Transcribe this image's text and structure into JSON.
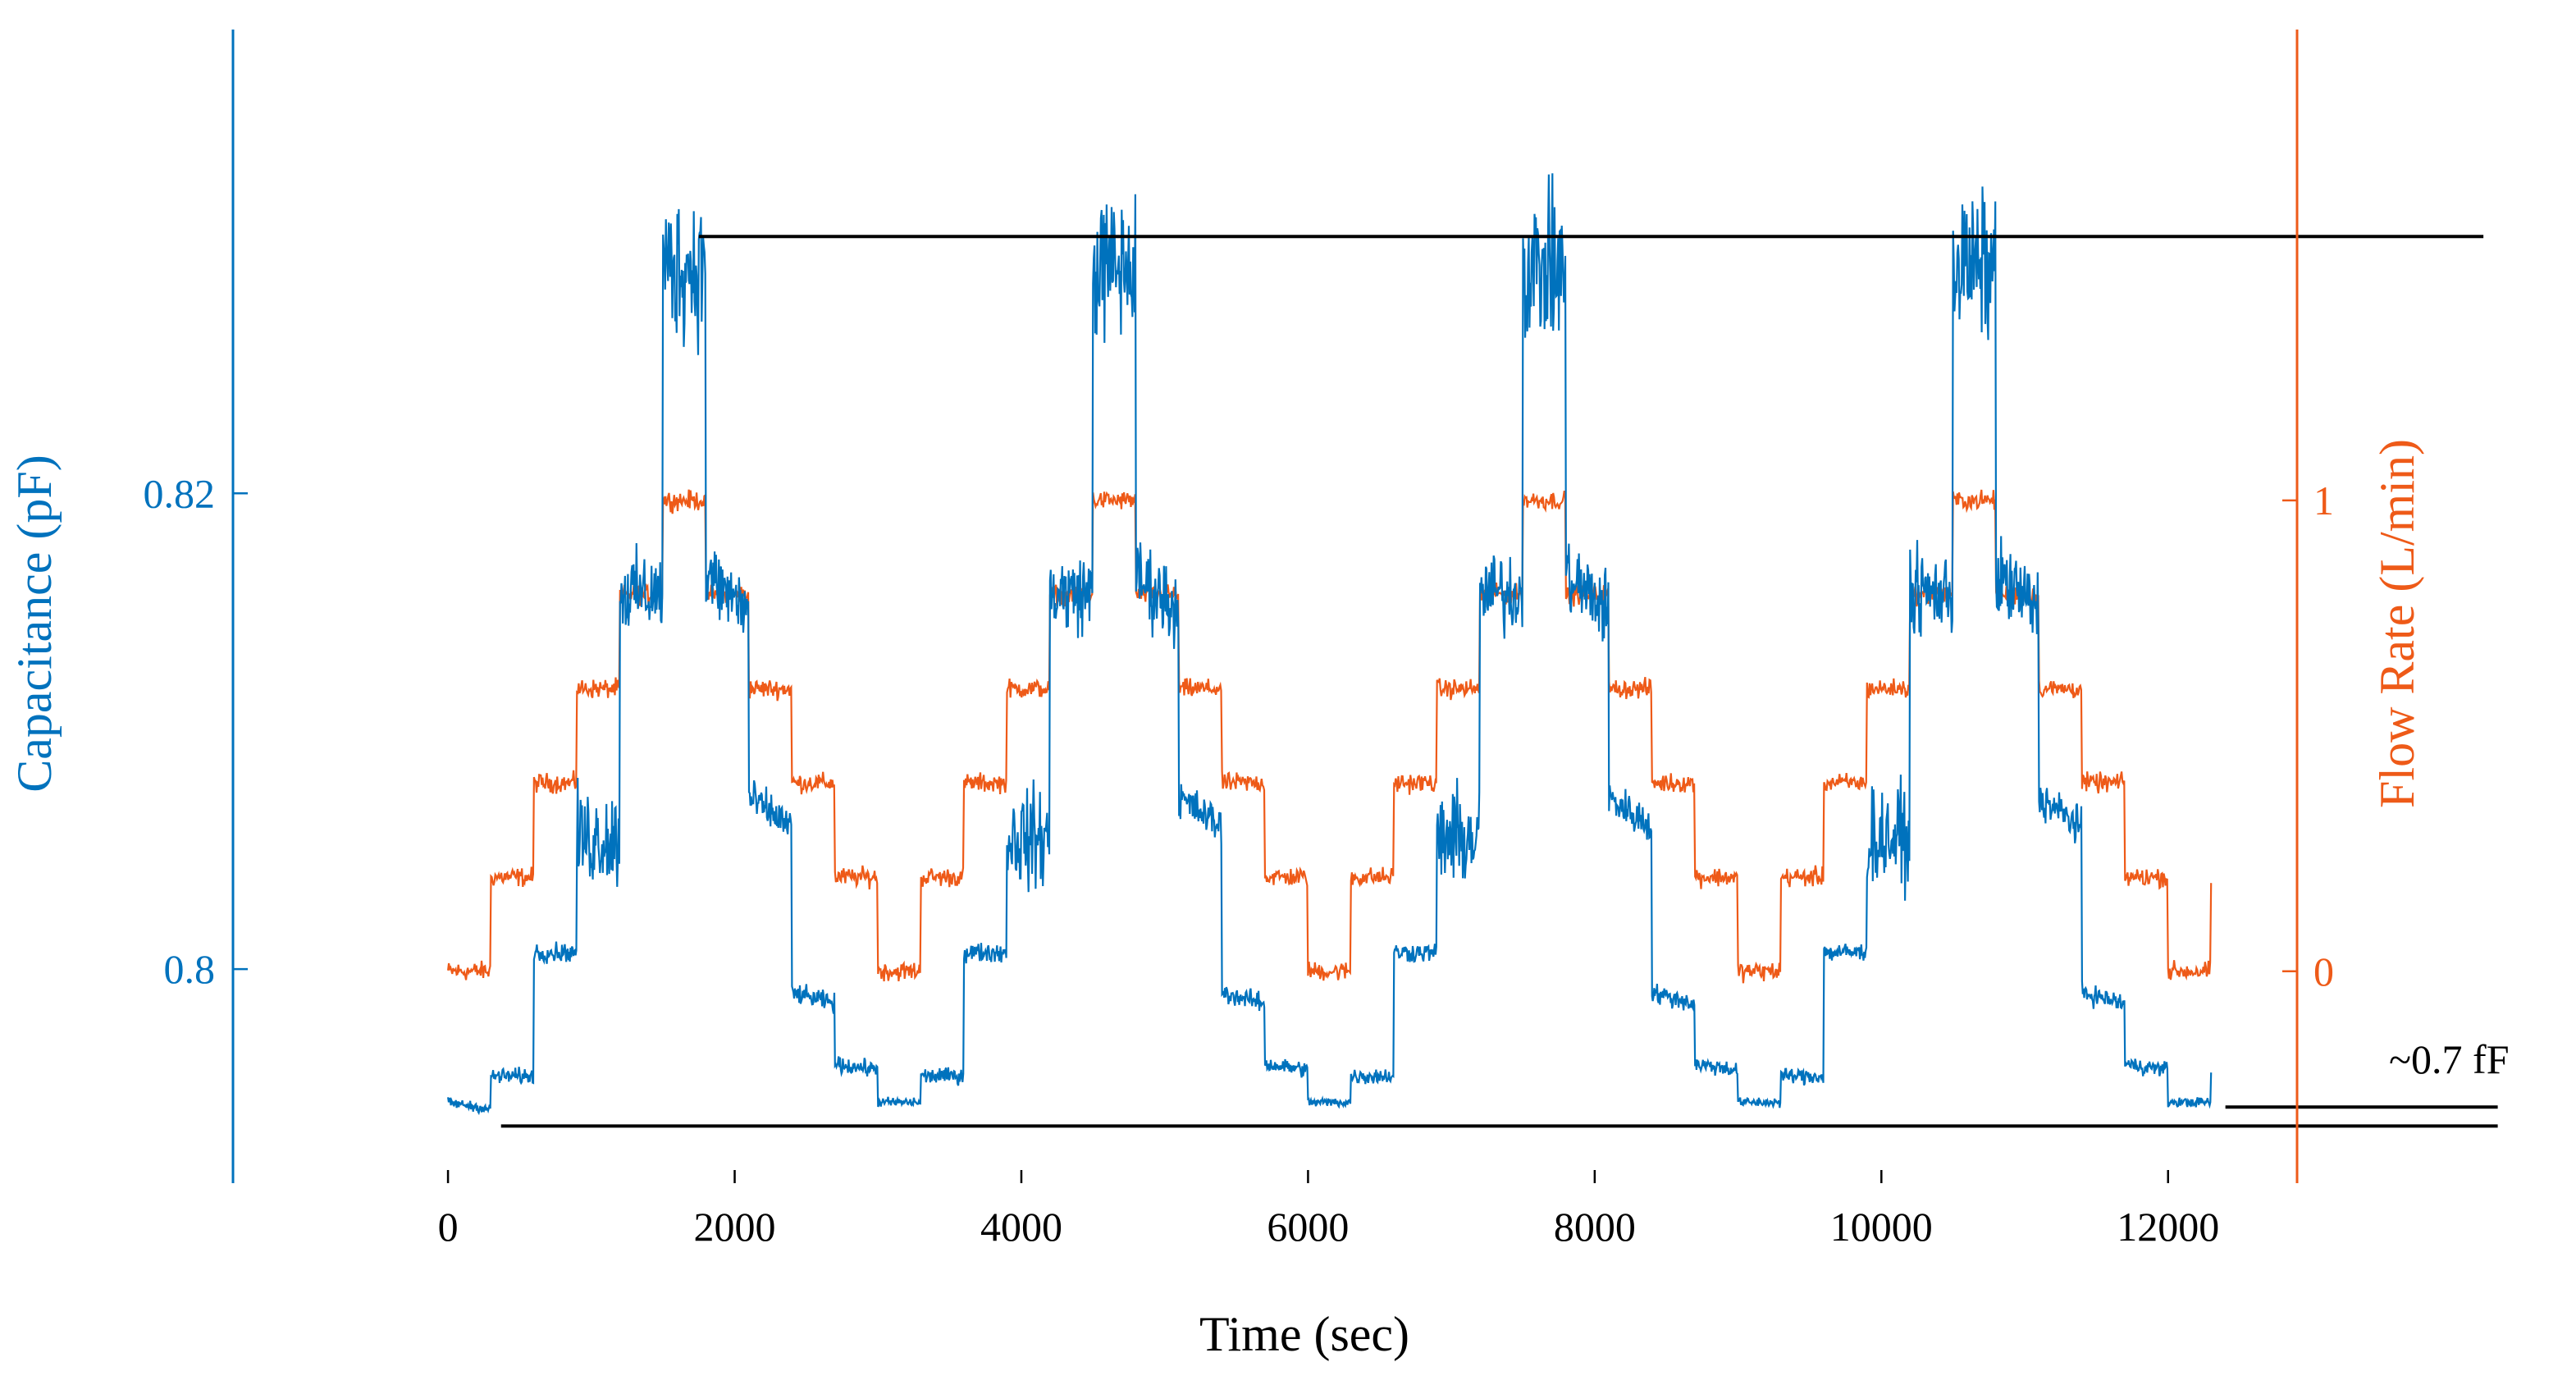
{
  "chart_data": {
    "type": "line",
    "xlabel": "Time (sec)",
    "ylabel_left": "Capacitance (pF)",
    "ylabel_right": "Flow Rate (L/min)",
    "xlim": [
      -1500,
      12900
    ],
    "ylim_left": [
      0.791,
      0.8395
    ],
    "ylim_right": [
      -0.45,
      2.0
    ],
    "x_ticks": [
      0,
      2000,
      4000,
      6000,
      8000,
      10000,
      12000
    ],
    "x_tick_labels": [
      "0",
      "2000",
      "4000",
      "6000",
      "8000",
      "10000",
      "12000"
    ],
    "y_left_ticks": [
      0.8,
      0.82
    ],
    "y_left_tick_labels": [
      "0.8",
      "0.82"
    ],
    "y_right_ticks": [
      0,
      1
    ],
    "y_right_tick_labels": [
      "0",
      "1"
    ],
    "cycle_period_sec": 3000,
    "step_duration_sec": 300,
    "series": [
      {
        "name": "Capacitance",
        "axis": "left",
        "color": "#0072BD",
        "cycle_start_sec": 0,
        "step_levels_pF": [
          0.7944,
          0.7955,
          0.8007,
          0.8055,
          0.8158,
          0.8295,
          0.8165,
          0.8072,
          0.799,
          0.796,
          0.7945
        ],
        "step_noise_pF": [
          0.0003,
          0.0005,
          0.0006,
          0.003,
          0.0025,
          0.0045,
          0.0025,
          0.0012,
          0.0006,
          0.0005,
          0.0003
        ],
        "series_end_sec": 12300
      },
      {
        "name": "Flow Rate",
        "axis": "right",
        "color": "#EE5A18",
        "cycle_start_sec": 0,
        "step_levels_Lmin": [
          0.0,
          0.2,
          0.4,
          0.6,
          0.8,
          1.0,
          0.8,
          0.6,
          0.4,
          0.2
        ],
        "step_noise_Lmin": 0.03,
        "series_end_sec": 12300
      }
    ],
    "reference_lines": [
      {
        "name": "upper reference",
        "axis": "left",
        "y": 0.8308,
        "x_start": 1750,
        "x_end": 14200,
        "color": "#000000"
      },
      {
        "name": "lower reference",
        "axis": "left",
        "y": 0.7934,
        "x_start": 370,
        "x_end": 14300,
        "color": "#000000"
      },
      {
        "name": "offset marker",
        "axis": "left",
        "y": 0.7942,
        "x_start": 12400,
        "x_end": 14300,
        "color": "#000000"
      }
    ],
    "annotations": [
      {
        "text": "~0.7 fF",
        "x": 13500,
        "y": 0.7948
      }
    ]
  }
}
